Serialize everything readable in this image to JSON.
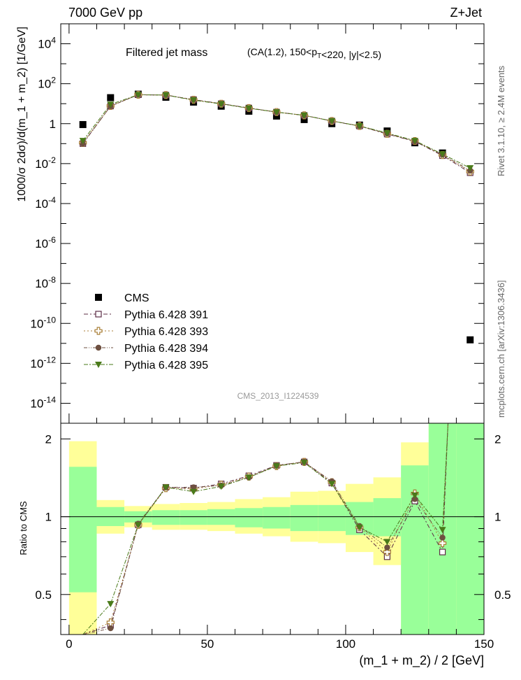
{
  "header": {
    "left": "7000 GeV pp",
    "right": "Z+Jet"
  },
  "side_labels": {
    "rivet": "Rivet 3.1.10, ≥ 2.4M events",
    "source": "mcplots.cern.ch [arXiv:1306.3436]"
  },
  "chart_data": {
    "type": "scatter",
    "title": "Filtered jet mass",
    "subtitle": "(CA(1.2), 150<p_T<220, |y|<2.5)",
    "watermark": "CMS_2013_I1224539",
    "xlabel": "(m_1 + m_2) / 2 [GeV]",
    "ylabel": "1000/σ 2dσ)/d(m_1 + m_2) [1/GeV]",
    "ratio_ylabel": "Ratio to CMS",
    "xlim": [
      -3,
      150
    ],
    "ylim_log10": [
      -15,
      5
    ],
    "ratio_ylim": [
      0.35,
      2.3
    ],
    "y_scale": "log",
    "ratio_scale": "log",
    "x_ticks": [
      0,
      50,
      100,
      150
    ],
    "y_tick_labels": [
      {
        "exp": 4,
        "label": "10^4"
      },
      {
        "exp": 2,
        "label": "10^2"
      },
      {
        "exp": 0,
        "label": "1"
      },
      {
        "exp": -2,
        "label": "10^-2"
      },
      {
        "exp": -4,
        "label": "10^-4"
      },
      {
        "exp": -6,
        "label": "10^-6"
      },
      {
        "exp": -8,
        "label": "10^-8"
      },
      {
        "exp": -10,
        "label": "10^-10"
      },
      {
        "exp": -12,
        "label": "10^-12"
      },
      {
        "exp": -14,
        "label": "10^-14"
      }
    ],
    "ratio_tick_labels": [
      {
        "value": 0.5,
        "label": "0.5"
      },
      {
        "value": 1,
        "label": "1"
      },
      {
        "value": 2,
        "label": "2"
      }
    ],
    "legend_position": "middle-left",
    "x": [
      5,
      15,
      25,
      35,
      45,
      55,
      65,
      75,
      85,
      95,
      105,
      115,
      125,
      135,
      145
    ],
    "x_edges": [
      0,
      10,
      20,
      30,
      40,
      50,
      60,
      70,
      80,
      90,
      100,
      110,
      120,
      130,
      140,
      150
    ],
    "band_inner": [
      [
        0.51,
        1.56
      ],
      [
        0.92,
        1.09
      ],
      [
        0.95,
        1.05
      ],
      [
        0.93,
        1.06
      ],
      [
        0.93,
        1.06
      ],
      [
        0.93,
        1.07
      ],
      [
        0.91,
        1.08
      ],
      [
        0.9,
        1.09
      ],
      [
        0.88,
        1.11
      ],
      [
        0.88,
        1.11
      ],
      [
        0.85,
        1.14
      ],
      [
        0.84,
        1.18
      ],
      [
        0.35,
        1.58
      ],
      [
        0.35,
        2.3
      ],
      [
        0.35,
        2.3
      ]
    ],
    "band_outer": [
      [
        0.35,
        1.96
      ],
      [
        0.86,
        1.16
      ],
      [
        0.91,
        1.1
      ],
      [
        0.89,
        1.12
      ],
      [
        0.89,
        1.13
      ],
      [
        0.88,
        1.14
      ],
      [
        0.86,
        1.17
      ],
      [
        0.84,
        1.19
      ],
      [
        0.8,
        1.25
      ],
      [
        0.79,
        1.26
      ],
      [
        0.73,
        1.34
      ],
      [
        0.65,
        1.42
      ],
      [
        0.35,
        1.94
      ],
      [
        0.35,
        2.3
      ],
      [
        0.35,
        2.3
      ]
    ],
    "series": [
      {
        "name": "CMS",
        "color": "#000000",
        "marker": "square-filled",
        "values": [
          0.9,
          20,
          30,
          21,
          12,
          7.5,
          4.2,
          2.4,
          1.6,
          1.0,
          0.85,
          0.43,
          0.11,
          0.034,
          1.5e-11
        ]
      },
      {
        "name": "Pythia 6.428 391",
        "color": "#5c2c45",
        "marker": "square-open",
        "values": [
          0.1,
          7.6,
          28,
          27,
          16,
          10,
          6.1,
          3.8,
          2.6,
          1.35,
          0.76,
          0.3,
          0.13,
          0.025,
          0.0035
        ],
        "ratio": [
          0.11,
          0.38,
          0.93,
          1.3,
          1.29,
          1.34,
          1.44,
          1.58,
          1.63,
          1.35,
          0.89,
          0.7,
          1.15,
          0.73,
          null
        ]
      },
      {
        "name": "Pythia 6.428 393",
        "color": "#a87d34",
        "marker": "cross-open",
        "values": [
          0.11,
          7.7,
          28,
          27,
          15.5,
          9.9,
          6.0,
          3.8,
          2.6,
          1.36,
          0.77,
          0.31,
          0.135,
          0.027,
          0.004
        ],
        "ratio": [
          0.12,
          0.39,
          0.93,
          1.29,
          1.28,
          1.33,
          1.43,
          1.57,
          1.63,
          1.36,
          0.91,
          0.73,
          1.23,
          0.79,
          null
        ]
      },
      {
        "name": "Pythia 6.428 394",
        "color": "#6e5040",
        "marker": "circle-filled",
        "values": [
          0.1,
          7.5,
          28,
          27,
          15.8,
          10,
          6.0,
          3.8,
          2.6,
          1.37,
          0.77,
          0.32,
          0.13,
          0.028,
          0.0045
        ],
        "ratio": [
          0.11,
          0.37,
          0.94,
          1.3,
          1.3,
          1.32,
          1.42,
          1.58,
          1.63,
          1.37,
          0.92,
          0.76,
          1.17,
          0.83,
          null
        ]
      },
      {
        "name": "Pythia 6.428 395",
        "color": "#4a7a1a",
        "marker": "triangle-down-filled",
        "values": [
          0.14,
          9.2,
          28,
          27,
          15,
          9.7,
          5.9,
          3.8,
          2.6,
          1.36,
          0.77,
          0.34,
          0.14,
          0.03,
          0.006
        ],
        "ratio": [
          0.16,
          0.46,
          0.93,
          1.3,
          1.25,
          1.31,
          1.42,
          1.57,
          1.62,
          1.34,
          0.91,
          0.8,
          1.21,
          0.89,
          null
        ]
      }
    ]
  }
}
